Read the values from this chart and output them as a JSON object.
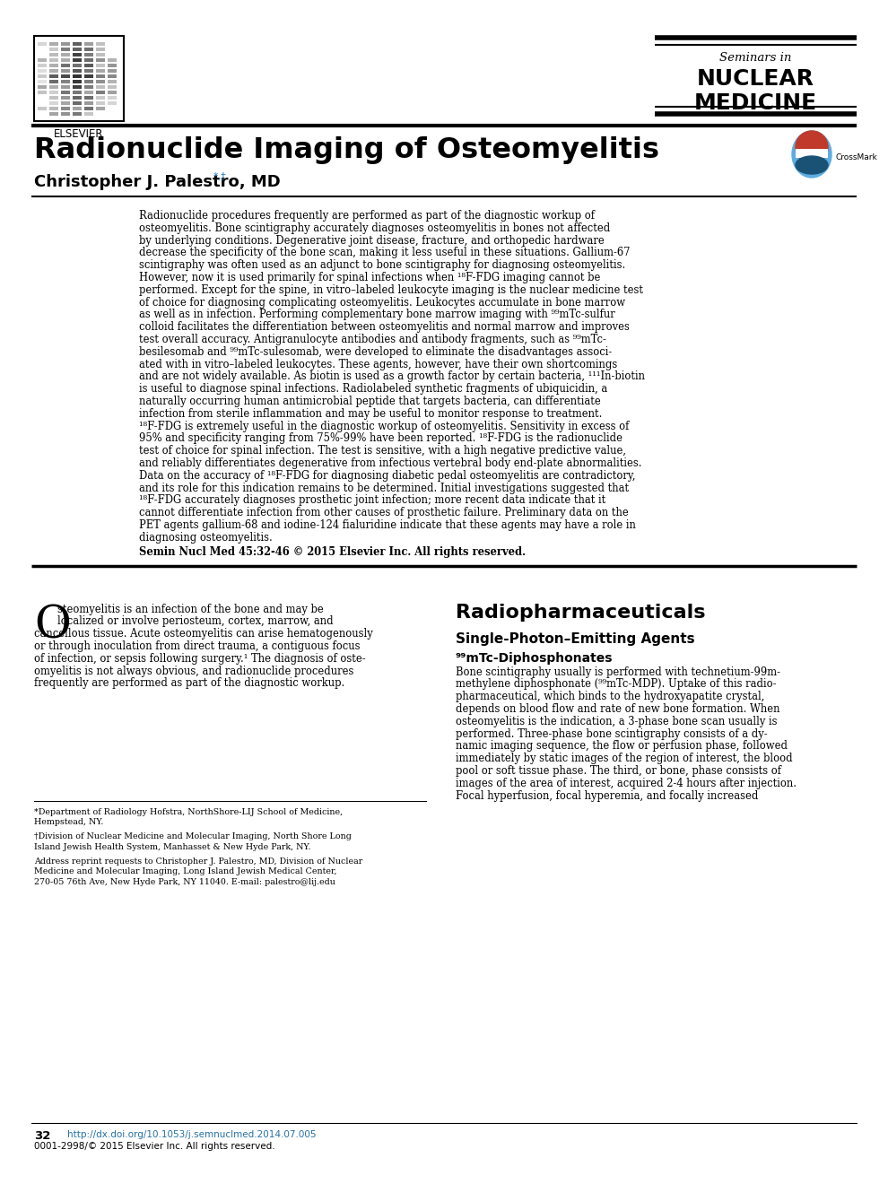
{
  "bg_color": "#ffffff",
  "title": "Radionuclide Imaging of Osteomyelitis",
  "author": "Christopher J. Palestro, MD",
  "author_superscript": "*,†",
  "journal_line1": "Seminars in",
  "journal_line2": "NUCLEAR",
  "journal_line3": "MEDICINE",
  "abstract_lines": [
    "Radionuclide procedures frequently are performed as part of the diagnostic workup of",
    "osteomyelitis. Bone scintigraphy accurately diagnoses osteomyelitis in bones not affected",
    "by underlying conditions. Degenerative joint disease, fracture, and orthopedic hardware",
    "decrease the specificity of the bone scan, making it less useful in these situations. Gallium-67",
    "scintigraphy was often used as an adjunct to bone scintigraphy for diagnosing osteomyelitis.",
    "However, now it is used primarily for spinal infections when ¹⁸F-FDG imaging cannot be",
    "performed. Except for the spine, in vitro–labeled leukocyte imaging is the nuclear medicine test",
    "of choice for diagnosing complicating osteomyelitis. Leukocytes accumulate in bone marrow",
    "as well as in infection. Performing complementary bone marrow imaging with ⁹⁹mTc-sulfur",
    "colloid facilitates the differentiation between osteomyelitis and normal marrow and improves",
    "test overall accuracy. Antigranulocyte antibodies and antibody fragments, such as ⁹⁹mTc-",
    "besilesomab and ⁹⁹mTc-sulesomab, were developed to eliminate the disadvantages associ-",
    "ated with in vitro–labeled leukocytes. These agents, however, have their own shortcomings",
    "and are not widely available. As biotin is used as a growth factor by certain bacteria, ¹¹¹In-biotin",
    "is useful to diagnose spinal infections. Radiolabeled synthetic fragments of ubiquicidin, a",
    "naturally occurring human antimicrobial peptide that targets bacteria, can differentiate",
    "infection from sterile inflammation and may be useful to monitor response to treatment.",
    "¹⁸F-FDG is extremely useful in the diagnostic workup of osteomyelitis. Sensitivity in excess of",
    "95% and specificity ranging from 75%-99% have been reported. ¹⁸F-FDG is the radionuclide",
    "test of choice for spinal infection. The test is sensitive, with a high negative predictive value,",
    "and reliably differentiates degenerative from infectious vertebral body end-plate abnormalities.",
    "Data on the accuracy of ¹⁸F-FDG for diagnosing diabetic pedal osteomyelitis are contradictory,",
    "and its role for this indication remains to be determined. Initial investigations suggested that",
    "¹⁸F-FDG accurately diagnoses prosthetic joint infection; more recent data indicate that it",
    "cannot differentiate infection from other causes of prosthetic failure. Preliminary data on the",
    "PET agents gallium-68 and iodine-124 fialuridine indicate that these agents may have a role in",
    "diagnosing osteomyelitis."
  ],
  "abstract_citation": "Semin Nucl Med 45:32-46 © 2015 Elsevier Inc. All rights reserved.",
  "intro_lines_col1": [
    "steomyelitis is an infection of the bone and may be",
    "localized or involve periosteum, cortex, marrow, and",
    "cancellous tissue. Acute osteomyelitis can arise hematogenously",
    "or through inoculation from direct trauma, a contiguous focus",
    "of infection, or sepsis following surgery.¹ The diagnosis of oste-",
    "omyelitis is not always obvious, and radionuclide procedures",
    "frequently are performed as part of the diagnostic workup."
  ],
  "section_title": "Radiopharmaceuticals",
  "subsection_title": "Single-Photon–Emitting Agents",
  "subsubsection_title": "⁹⁹mTc-Diphosphonates",
  "right_col_lines": [
    "Bone scintigraphy usually is performed with technetium-99m-",
    "methylene diphosphonate (⁹⁹mTc-MDP). Uptake of this radio-",
    "pharmaceutical, which binds to the hydroxyapatite crystal,",
    "depends on blood flow and rate of new bone formation. When",
    "osteomyelitis is the indication, a 3-phase bone scan usually is",
    "performed. Three-phase bone scintigraphy consists of a dy-",
    "namic imaging sequence, the flow or perfusion phase, followed",
    "immediately by static images of the region of interest, the blood",
    "pool or soft tissue phase. The third, or bone, phase consists of",
    "images of the area of interest, acquired 2-4 hours after injection.",
    "Focal hyperfusion, focal hyperemia, and focally increased"
  ],
  "footnote1": "*Department of Radiology Hofstra, NorthShore-LIJ School of Medicine,",
  "footnote1b": "Hempstead, NY.",
  "footnote2": "†Division of Nuclear Medicine and Molecular Imaging, North Shore Long",
  "footnote2b": "Island Jewish Health System, Manhasset & New Hyde Park, NY.",
  "footnote3a": "Address reprint requests to Christopher J. Palestro, MD, Division of Nuclear",
  "footnote3b": "Medicine and Molecular Imaging, Long Island Jewish Medical Center,",
  "footnote3c": "270-05 76th Ave, New Hyde Park, NY 11040. E-mail: palestro@lij.edu",
  "page_number": "32",
  "doi_text": "http://dx.doi.org/10.1053/j.semnuclmed.2014.07.005",
  "copyright_text": "0001-2998/© 2015 Elsevier Inc. All rights reserved."
}
